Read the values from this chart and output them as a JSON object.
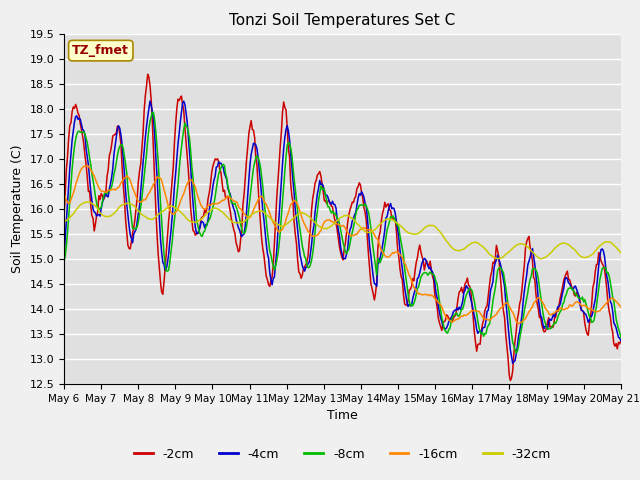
{
  "title": "Tonzi Soil Temperatures Set C",
  "xlabel": "Time",
  "ylabel": "Soil Temperature (C)",
  "legend_label": "TZ_fmet",
  "series_labels": [
    "-2cm",
    "-4cm",
    "-8cm",
    "-16cm",
    "-32cm"
  ],
  "series_colors": [
    "#cc0000",
    "#0000cc",
    "#00bb00",
    "#ff8800",
    "#cccc00"
  ],
  "ylim": [
    12.5,
    19.5
  ],
  "yticks": [
    12.5,
    13.0,
    13.5,
    14.0,
    14.5,
    15.0,
    15.5,
    16.0,
    16.5,
    17.0,
    17.5,
    18.0,
    18.5,
    19.0,
    19.5
  ],
  "x_tick_labels": [
    "May 6",
    "May 7",
    "May 8",
    "May 9",
    "May 10",
    "May 11",
    "May 12",
    "May 13",
    "May 14",
    "May 15",
    "May 16",
    "May 17",
    "May 18",
    "May 19",
    "May 20",
    "May 21"
  ],
  "plot_bg_color": "#e0e0e0",
  "fig_bg_color": "#f0f0f0",
  "grid_color": "#ffffff",
  "n_points": 480,
  "days": 16
}
